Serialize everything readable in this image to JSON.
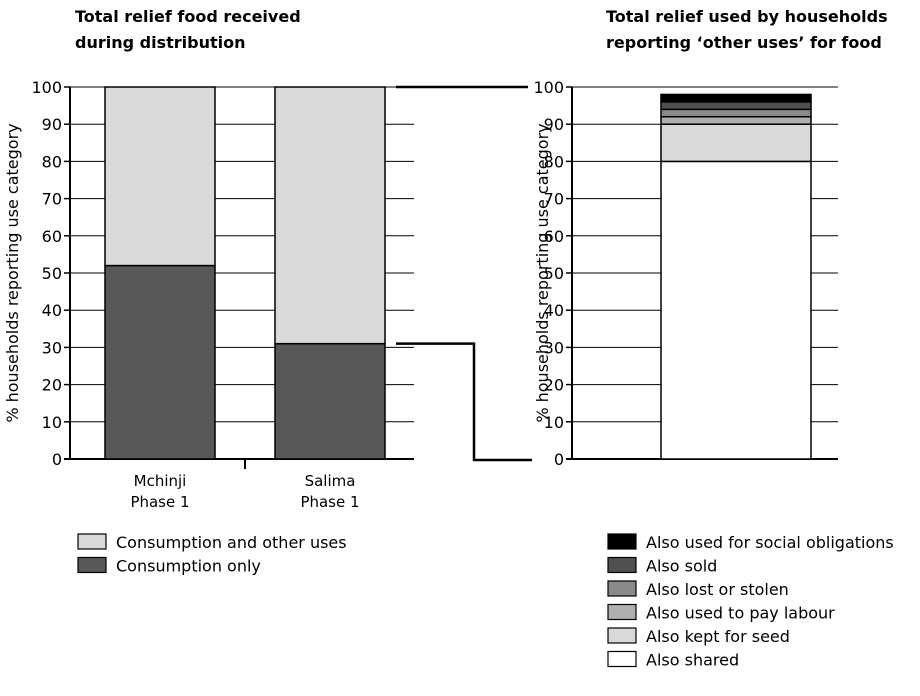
{
  "chart_data": [
    {
      "type": "bar",
      "stacked": true,
      "title_lines": [
        "Total relief food received",
        "during distribution"
      ],
      "ylabel": "% households reporting use category",
      "ylim": [
        0,
        100
      ],
      "yticks": [
        "0",
        "10",
        "20",
        "30",
        "40",
        "50",
        "60",
        "70",
        "80",
        "90",
        "100"
      ],
      "grid": true,
      "categories": [
        {
          "lines": [
            "Mchinji",
            "Phase 1"
          ]
        },
        {
          "lines": [
            "Salima",
            "Phase 1"
          ]
        }
      ],
      "series": [
        {
          "name": "Consumption only",
          "color": "#585858",
          "values": [
            52,
            31
          ]
        },
        {
          "name": "Consumption and other uses",
          "color": "#d9d9d9",
          "values": [
            48,
            69
          ]
        }
      ],
      "legend_order": [
        "Consumption and other uses",
        "Consumption only"
      ],
      "legend_position": "bottom-left"
    },
    {
      "type": "bar",
      "stacked": true,
      "title_lines": [
        "Total relief used by households",
        "reporting ‘other uses’ for food"
      ],
      "ylabel": "% households reporting use category",
      "ylim": [
        0,
        100
      ],
      "yticks": [
        "0",
        "10",
        "20",
        "30",
        "40",
        "50",
        "60",
        "70",
        "80",
        "90",
        "100"
      ],
      "grid": true,
      "categories": [
        {
          "lines": []
        }
      ],
      "series": [
        {
          "name": "Also shared",
          "color": "#ffffff",
          "values": [
            80
          ]
        },
        {
          "name": "Also kept for seed",
          "color": "#d9d9d9",
          "values": [
            10
          ]
        },
        {
          "name": "Also used to pay labour",
          "color": "#b0b0b0",
          "values": [
            2
          ]
        },
        {
          "name": "Also lost or stolen",
          "color": "#8a8a8a",
          "values": [
            2
          ]
        },
        {
          "name": "Also sold",
          "color": "#505050",
          "values": [
            2
          ]
        },
        {
          "name": "Also used for social obligations",
          "color": "#000000",
          "values": [
            2
          ]
        }
      ],
      "legend_order": [
        "Also used for social obligations",
        "Also sold",
        "Also lost or stolen",
        "Also used to pay labour",
        "Also kept for seed",
        "Also shared"
      ],
      "legend_position": "bottom-right"
    }
  ]
}
